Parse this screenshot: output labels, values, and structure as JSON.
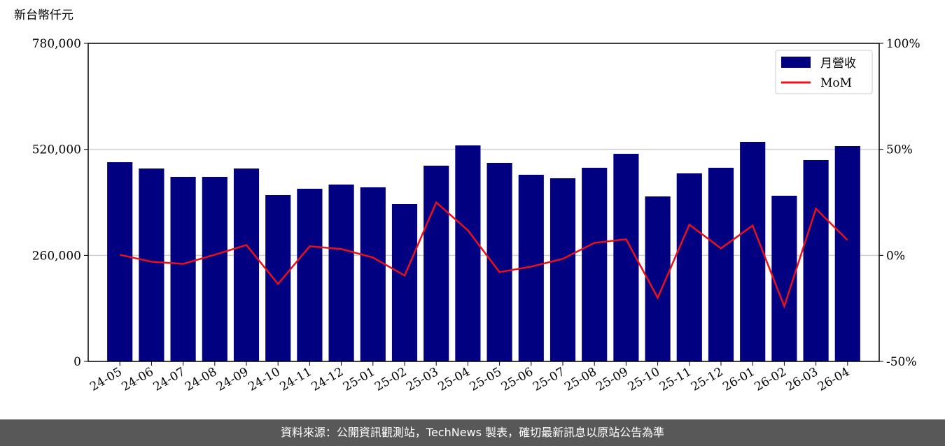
{
  "chart_data": {
    "type": "bar-line",
    "y_unit_label": "新台幣仟元",
    "categories": [
      "24-05",
      "24-06",
      "24-07",
      "24-08",
      "24-09",
      "24-10",
      "24-11",
      "24-12",
      "25-01",
      "25-02",
      "25-03",
      "25-04",
      "25-05",
      "25-06",
      "25-07",
      "25-08",
      "25-09",
      "25-10",
      "25-11",
      "25-12",
      "26-01",
      "26-02",
      "26-03",
      "26-04"
    ],
    "series": [
      {
        "name": "月營收",
        "color": "#000080",
        "values": [
          488500,
          473000,
          452600,
          452600,
          473000,
          408000,
          423400,
          433700,
          426900,
          385700,
          480000,
          529700,
          486900,
          457700,
          449100,
          474900,
          509100,
          404600,
          461100,
          474900,
          538300,
          406300,
          493700,
          528000
        ]
      },
      {
        "name": "MoM",
        "color": "#e8101c",
        "axis": "y2",
        "values": [
          0.3,
          -3,
          -4,
          0.3,
          4.9,
          -13.5,
          4.3,
          3,
          -1,
          -9.5,
          25,
          11.8,
          -7.9,
          -5.3,
          -1.6,
          5.9,
          7.6,
          -20,
          14.5,
          3.3,
          14.1,
          -24,
          22,
          7.2
        ]
      }
    ],
    "ylim": [
      0,
      780000
    ],
    "yticks": [
      0,
      {
        "value": 260000,
        "label": "260,000"
      },
      {
        "value": 520000,
        "label": "520,000"
      },
      {
        "value": 780000,
        "label": "780,000"
      }
    ],
    "y2lim": [
      -50,
      100
    ],
    "y2ticks": [
      {
        "value": -50,
        "label": "-50%"
      },
      {
        "value": 0,
        "label": "0%"
      },
      {
        "value": 50,
        "label": "50%"
      },
      {
        "value": 100,
        "label": "100%"
      }
    ],
    "grid": true,
    "legend": "upper right",
    "footer": "資料來源：公開資訊觀測站，TechNews 製表，確切最新訊息以原站公告為準"
  }
}
